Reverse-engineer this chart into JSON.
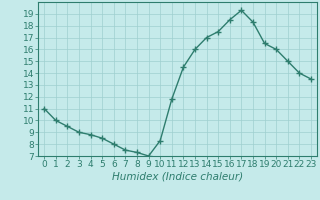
{
  "x": [
    0,
    1,
    2,
    3,
    4,
    5,
    6,
    7,
    8,
    9,
    10,
    11,
    12,
    13,
    14,
    15,
    16,
    17,
    18,
    19,
    20,
    21,
    22,
    23
  ],
  "y": [
    11.0,
    10.0,
    9.5,
    9.0,
    8.8,
    8.5,
    8.0,
    7.5,
    7.3,
    7.0,
    8.3,
    11.8,
    14.5,
    16.0,
    17.0,
    17.5,
    18.5,
    19.3,
    18.3,
    16.5,
    16.0,
    15.0,
    14.0,
    13.5
  ],
  "line_color": "#2e7d6e",
  "marker": "+",
  "marker_size": 4,
  "line_width": 1.0,
  "bg_color": "#c5eaea",
  "grid_color": "#9fcfcf",
  "xlabel": "Humidex (Indice chaleur)",
  "xlabel_style": "italic",
  "ylim": [
    7,
    20
  ],
  "xlim": [
    -0.5,
    23.5
  ],
  "yticks": [
    7,
    8,
    9,
    10,
    11,
    12,
    13,
    14,
    15,
    16,
    17,
    18,
    19
  ],
  "xticks": [
    0,
    1,
    2,
    3,
    4,
    5,
    6,
    7,
    8,
    9,
    10,
    11,
    12,
    13,
    14,
    15,
    16,
    17,
    18,
    19,
    20,
    21,
    22,
    23
  ],
  "tick_label_fontsize": 6.5,
  "xlabel_fontsize": 7.5
}
